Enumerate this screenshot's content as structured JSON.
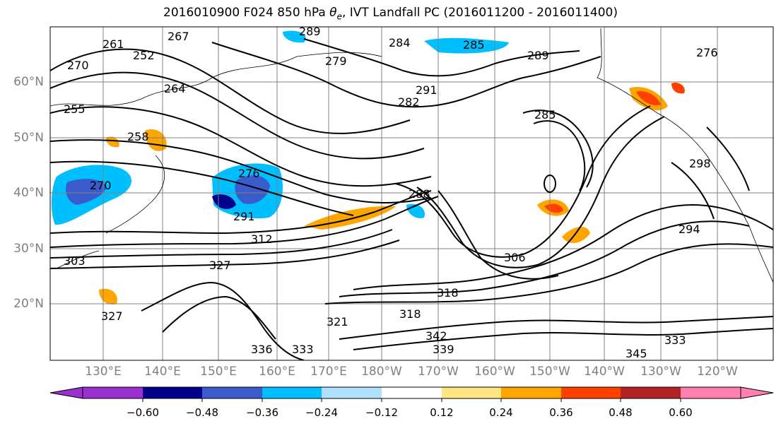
{
  "title": {
    "prefix": "2016010900 F024 850 hPa ",
    "symbol": "θ",
    "subscript": "e",
    "suffix": ", IVT Landfall PC (2016011200 - 2016011400)"
  },
  "map": {
    "lat_ticks": [
      "60°N",
      "50°N",
      "40°N",
      "30°N",
      "20°N"
    ],
    "lon_ticks": [
      "130°E",
      "140°E",
      "150°E",
      "160°E",
      "170°E",
      "180°W",
      "170°W",
      "160°W",
      "150°W",
      "140°W",
      "130°W",
      "120°W"
    ],
    "contour_labels": [
      "261",
      "267",
      "289",
      "279",
      "284",
      "285",
      "289",
      "276",
      "270",
      "252",
      "264",
      "291",
      "282",
      "255",
      "258",
      "285",
      "270",
      "276",
      "288",
      "291",
      "312",
      "294",
      "303",
      "327",
      "306",
      "298",
      "318",
      "318",
      "327",
      "321",
      "342",
      "339",
      "336",
      "333",
      "345",
      "333"
    ]
  },
  "colorbar": {
    "ticks": [
      "−0.60",
      "−0.48",
      "−0.36",
      "−0.24",
      "−0.12",
      "0.12",
      "0.24",
      "0.36",
      "0.48",
      "0.60"
    ],
    "colors": [
      "#9b30d0",
      "#00008b",
      "#3a5bcb",
      "#00bfff",
      "#b0e2ff",
      "#ffffff",
      "#ffe680",
      "#ffa500",
      "#ff4000",
      "#b22222",
      "#ff80b0"
    ]
  },
  "style": {
    "contour_color": "#000000",
    "graticule_color": "#808080",
    "tick_label_color": "#808080"
  }
}
